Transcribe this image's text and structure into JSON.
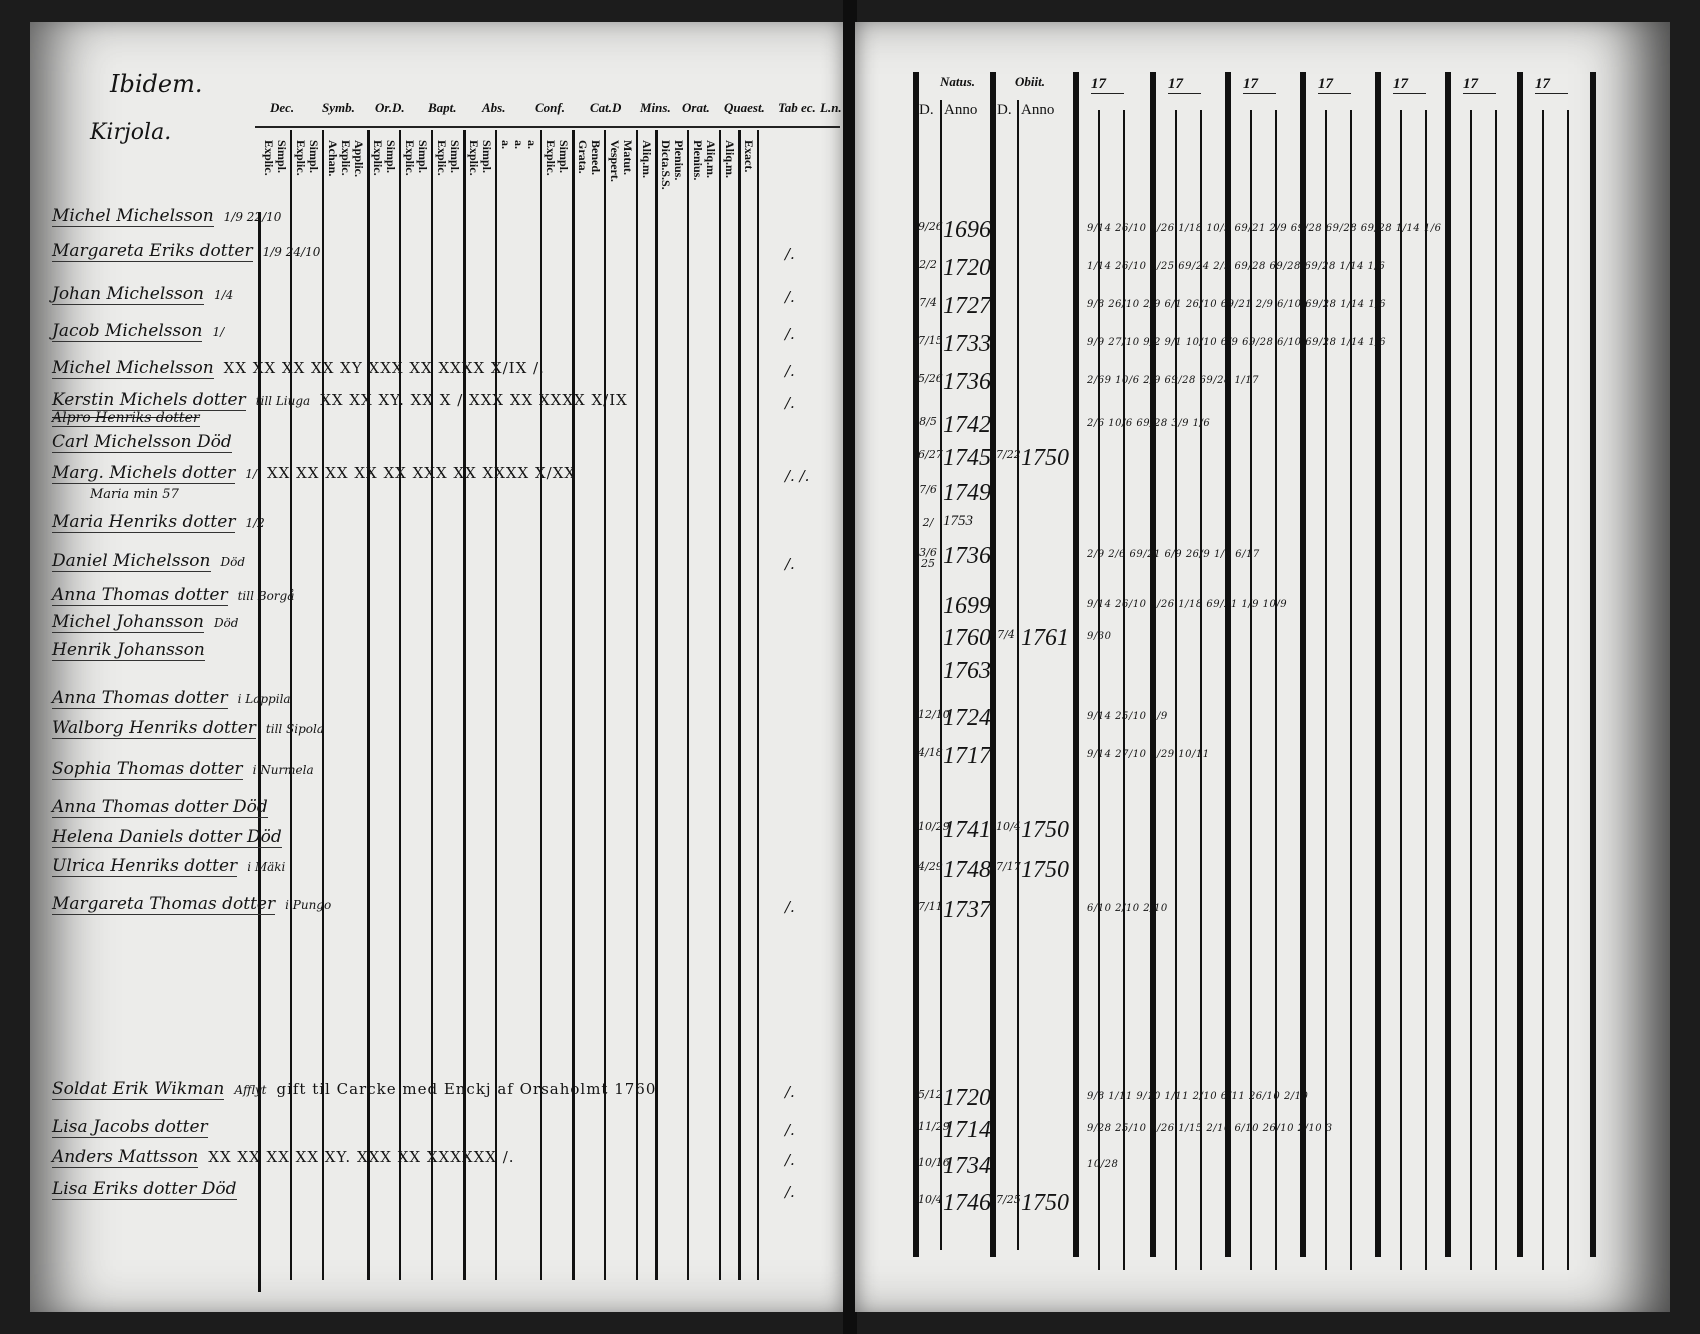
{
  "left_page": {
    "heading": "Ibidem.",
    "village": "Kirjola.",
    "header_groups": [
      "Dec.",
      "Symb.",
      "Or.D.",
      "Bapt.",
      "Abs.",
      "Conf.",
      "Cat.D",
      "Mins.",
      "Orat.",
      "Quaest.",
      "Tab ec.",
      "L.n."
    ],
    "sub_headers": [
      "Simpl.\nExplic.",
      "Simpl.\nExplic.",
      "Applic.\nExplic.\nAchan.",
      "Simpl.\nExplic.",
      "Simpl.\nExplic.",
      "Simpl.\nExplic.",
      "Simpl.\nExplic.",
      "a.\na.\na.",
      "Simpl.\nExplic.",
      "Bened.\nGrata.",
      "Matut.\nVespert.",
      "Aliq.m.",
      "Plenius.\nDicta.S.S.",
      "Aliq.m.\nPlenius.",
      "Aliq.m.",
      "Exact."
    ],
    "persons": [
      {
        "name": "Michel Michelsson",
        "note": "1/9 22/10",
        "marks": "",
        "remark": ""
      },
      {
        "name": "Margareta Eriks dotter",
        "note": "1/9 24/10",
        "marks": "",
        "remark": "/."
      },
      {
        "name": "Johan Michelsson",
        "note": "1/4",
        "marks": "",
        "remark": "/."
      },
      {
        "name": "Jacob Michelsson",
        "note": "1/",
        "marks": "",
        "remark": "/."
      },
      {
        "name": "Michel Michelsson",
        "note": "",
        "marks": "XX   XX   XX  XX  XY  XXX  XX  XXXX X/IX /.",
        "remark": "/."
      },
      {
        "name": "Kerstin Michels dotter",
        "note": "till Liuga",
        "marks": "XX   XX   XY.  XX  X /  XXX  XX  XXXX X/IX",
        "remark": "/."
      },
      {
        "name": "Alpro Henriks dotter",
        "note": "",
        "marks": "",
        "remark": "",
        "struck": true
      },
      {
        "name": "Carl Michelsson Död",
        "note": "",
        "marks": "",
        "remark": ""
      },
      {
        "name": "Marg. Michels dotter",
        "note": "1/",
        "marks": "XX  XX   XX  XX  XX  XXX  XX  XXXX X/XX",
        "remark": "/.   /."
      },
      {
        "name": "Maria min 57",
        "note": "",
        "marks": "",
        "remark": ""
      },
      {
        "name": "Maria Henriks dotter",
        "note": "1/2",
        "marks": "",
        "remark": ""
      },
      {
        "name": "Daniel Michelsson",
        "note": "Död",
        "marks": "",
        "remark": "/."
      },
      {
        "name": "Anna Thomas dotter",
        "note": "till Borgå",
        "marks": "",
        "remark": ""
      },
      {
        "name": "Michel Johansson",
        "note": "Död",
        "marks": "",
        "remark": ""
      },
      {
        "name": "Henrik Johansson",
        "note": "",
        "marks": "",
        "remark": ""
      },
      {
        "name": "Anna Thomas dotter",
        "note": "i Lappila",
        "marks": "",
        "remark": ""
      },
      {
        "name": "Walborg Henriks dotter",
        "note": "till Sipola",
        "marks": "",
        "remark": ""
      },
      {
        "name": "Sophia Thomas dotter",
        "note": "i Nurmela",
        "marks": "",
        "remark": ""
      },
      {
        "name": "Anna Thomas dotter Död",
        "note": "",
        "marks": "",
        "remark": ""
      },
      {
        "name": "Helena Daniels dotter Död",
        "note": "",
        "marks": "",
        "remark": ""
      },
      {
        "name": "Ulrica Henriks dotter",
        "note": "i Mäki",
        "marks": "",
        "remark": ""
      },
      {
        "name": "Margareta Thomas dotter",
        "note": "i Pungo",
        "marks": "",
        "remark": "/."
      },
      {
        "name": "Soldat Erik Wikman",
        "note": "Afflyt",
        "marks": "gift til Carcke med Enckj af Orsaholmt 1760",
        "remark": "/."
      },
      {
        "name": "Lisa Jacobs dotter",
        "note": "",
        "marks": "",
        "remark": "/."
      },
      {
        "name": "Anders Mattsson",
        "note": "",
        "marks": "XX  XX  XX  XX  XY.  XXX  XX  XXXXXX /.",
        "remark": "/."
      },
      {
        "name": "Lisa Eriks dotter Död",
        "note": "",
        "marks": "",
        "remark": "/."
      }
    ]
  },
  "right_page": {
    "header_natus": "Natus.",
    "header_obiit": "Obiit.",
    "sub_day": "D.",
    "sub_anno": "Anno",
    "year_headers": [
      "17",
      "17",
      "17",
      "17",
      "17",
      "17",
      "17"
    ],
    "entries": [
      {
        "born_day": "9/26",
        "born_year": "1696",
        "died_day": "",
        "died_year": "",
        "exams": "9/14  26/10  9/26  1/18  10/9  69/21  2/9  69/28  69/28  69/28  1/14  1/6"
      },
      {
        "born_day": "2/2",
        "born_year": "1720",
        "died_day": "",
        "died_year": "",
        "exams": "1/14  26/10  9/25  69/24  2/9  69/28  69/28  69/28  1/14  1/6"
      },
      {
        "born_day": "7/4",
        "born_year": "1727",
        "died_day": "",
        "died_year": "",
        "exams": "9/8  26/10  2/9  6/1  26/10  69/21  2/9  6/10  69/28  1/14  1/6"
      },
      {
        "born_day": "7/15",
        "born_year": "1733",
        "died_day": "",
        "died_year": "",
        "exams": "9/9  27/10  9/2  9/1  10/10  6/9  69/28  6/10  69/28  1/14  1/6"
      },
      {
        "born_day": "5/26",
        "born_year": "1736",
        "died_day": "",
        "died_year": "",
        "exams": "2/69  10/6  2/9  69/28  69/28  1/17"
      },
      {
        "born_day": "8/5",
        "born_year": "1742",
        "died_day": "",
        "died_year": "",
        "exams": "2/6  10/6  69/28  3/9  1/6"
      },
      {
        "born_day": "6/27",
        "born_year": "1745",
        "died_day": "7/22",
        "died_year": "1750",
        "exams": ""
      },
      {
        "born_day": "7/6",
        "born_year": "1749",
        "died_day": "",
        "died_year": "",
        "exams": ""
      },
      {
        "born_day": "2/",
        "born_year": "1753",
        "died_day": "",
        "died_year": "",
        "exams": ""
      },
      {
        "born_day": "3/6 25",
        "born_year": "1736",
        "died_day": "",
        "died_year": "",
        "exams": "2/9  2/6  69/21  6/9  26/9  1/6  6/17"
      },
      {
        "born_day": "",
        "born_year": "1699",
        "died_day": "",
        "died_year": "",
        "exams": "9/14  26/10  9/26  1/18  69/21  1/9  10/9"
      },
      {
        "born_day": "",
        "born_year": "1760",
        "died_day": "7/4",
        "died_year": "1761",
        "exams": "9/30"
      },
      {
        "born_day": "",
        "born_year": "1763",
        "died_day": "",
        "died_year": "",
        "exams": ""
      },
      {
        "born_day": "12/10",
        "born_year": "1724",
        "died_day": "",
        "died_year": "",
        "exams": "9/14  25/10  6/9"
      },
      {
        "born_day": "4/18",
        "born_year": "1717",
        "died_day": "",
        "died_year": "",
        "exams": "9/14  27/10  9/29  10/11"
      },
      {
        "born_day": "10/29",
        "born_year": "1741",
        "died_day": "10/4",
        "died_year": "1750",
        "exams": ""
      },
      {
        "born_day": "4/29",
        "born_year": "1748",
        "died_day": "7/17",
        "died_year": "1750",
        "exams": ""
      },
      {
        "born_day": "7/11",
        "born_year": "1737",
        "died_day": "",
        "died_year": "",
        "exams": "6/10  2/10  2/10"
      },
      {
        "born_day": "5/12",
        "born_year": "1720",
        "died_day": "",
        "died_year": "",
        "exams": "9/8  1/11  9/10  1/11  2/10  6/11  26/10  2/10"
      },
      {
        "born_day": "11/29",
        "born_year": "1714",
        "died_day": "",
        "died_year": "",
        "exams": "9/28  25/10  9/26  1/15  2/10  6/10  26/10  2/10  3"
      },
      {
        "born_day": "10/16",
        "born_year": "1734",
        "died_day": "",
        "died_year": "",
        "exams": "10/28"
      },
      {
        "born_day": "10/4",
        "born_year": "1746",
        "died_day": "7/25",
        "died_year": "1750",
        "exams": ""
      }
    ]
  }
}
